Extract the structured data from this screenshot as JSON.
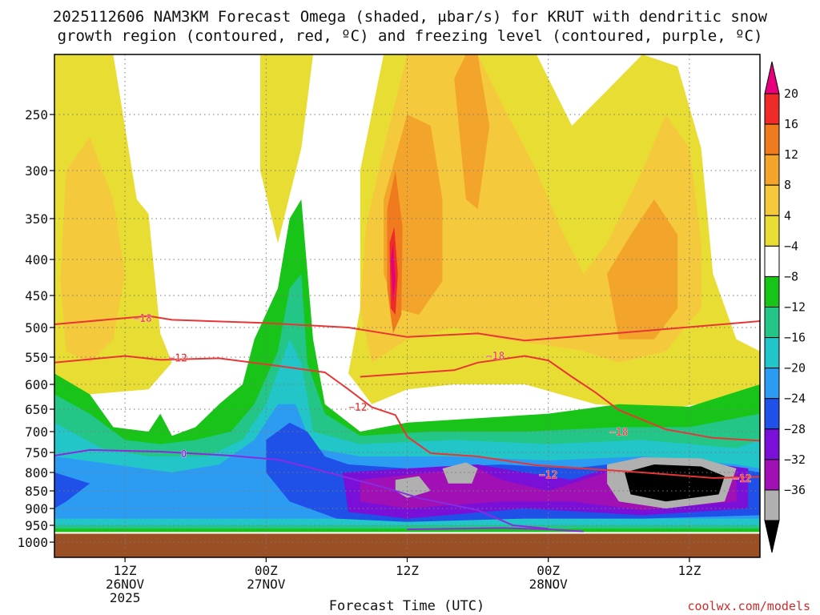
{
  "chart_data": {
    "type": "heatmap",
    "title_line1": "2025112606 NAM3KM Forecast Omega (shaded, μbar/s) for KRUT with dendritic snow",
    "title_line2": "growth region (contoured, red, ºC) and freezing level (contoured, purple, ºC)",
    "xlabel": "Forecast Time (UTC)",
    "credit": "coolwx.com/models",
    "y_axis": {
      "variable": "pressure (mb)",
      "ticks": [
        250,
        300,
        350,
        400,
        450,
        500,
        550,
        600,
        650,
        700,
        750,
        800,
        850,
        900,
        950,
        1000
      ],
      "range": [
        200,
        1000
      ]
    },
    "x_axis": {
      "variable": "forecast hour",
      "range": [
        0,
        60
      ],
      "ticks": [
        {
          "hour": 6,
          "line1": "12Z",
          "line2": "26NOV",
          "line3": "2025"
        },
        {
          "hour": 18,
          "line1": "00Z",
          "line2": "27NOV",
          "line3": ""
        },
        {
          "hour": 30,
          "line1": "12Z",
          "line2": "",
          "line3": ""
        },
        {
          "hour": 42,
          "line1": "00Z",
          "line2": "28NOV",
          "line3": ""
        },
        {
          "hour": 54,
          "line1": "12Z",
          "line2": "",
          "line3": ""
        }
      ]
    },
    "colorbar": {
      "labels": [
        "20",
        "16",
        "12",
        "8",
        "4",
        "−4",
        "−8",
        "−12",
        "−16",
        "−20",
        "−24",
        "−28",
        "−32",
        "−36"
      ],
      "colors": [
        "#e6007e",
        "#ee2a2a",
        "#f07a1e",
        "#f3a42a",
        "#f5c93c",
        "#e8dd32",
        "#ffffff",
        "#18c418",
        "#23c687",
        "#22c5c8",
        "#2b9cf2",
        "#1f50e8",
        "#7a10d8",
        "#a010b4",
        "#b0b0b0",
        "#000000"
      ]
    },
    "fields": {
      "rising_motion_layer": {
        "base_mb": 960,
        "top_mb_range": [
          600,
          350
        ],
        "omega_min": -36
      },
      "sinking_motion_aloft": {
        "layer_mb": [
          220,
          520
        ],
        "omega_max": 20,
        "peak_hour": 27
      }
    },
    "contours": [
      {
        "label": "−18",
        "color": "#e83535",
        "points": [
          [
            0,
            495
          ],
          [
            8,
            482
          ],
          [
            10,
            488
          ],
          [
            18,
            493
          ],
          [
            25,
            500
          ],
          [
            30,
            516
          ],
          [
            36,
            510
          ],
          [
            40,
            522
          ],
          [
            45,
            514
          ],
          [
            50,
            506
          ],
          [
            60,
            490
          ]
        ]
      },
      {
        "label": "−12",
        "color": "#e83535",
        "points": [
          [
            0,
            560
          ],
          [
            6,
            548
          ],
          [
            9,
            555
          ],
          [
            14,
            552
          ],
          [
            19,
            566
          ],
          [
            23,
            578
          ],
          [
            25,
            610
          ],
          [
            27,
            646
          ],
          [
            29,
            663
          ],
          [
            30,
            712
          ],
          [
            32,
            752
          ],
          [
            36,
            760
          ],
          [
            41,
            782
          ],
          [
            45,
            790
          ],
          [
            50,
            800
          ],
          [
            56,
            815
          ],
          [
            60,
            812
          ]
        ]
      },
      {
        "label": "−12",
        "color": "#e83535",
        "points": [
          [
            26,
            586
          ],
          [
            34,
            574
          ],
          [
            36,
            560
          ],
          [
            40,
            548
          ],
          [
            42,
            556
          ],
          [
            44,
            586
          ],
          [
            46,
            616
          ],
          [
            48,
            652
          ],
          [
            52,
            695
          ],
          [
            56,
            715
          ],
          [
            60,
            722
          ]
        ]
      },
      {
        "label": "0",
        "color": "#8a2be2",
        "points": [
          [
            0,
            758
          ],
          [
            3,
            744
          ],
          [
            9,
            748
          ],
          [
            15,
            758
          ],
          [
            19,
            768
          ],
          [
            22,
            790
          ],
          [
            25,
            815
          ],
          [
            28,
            840
          ],
          [
            31,
            870
          ],
          [
            36,
            905
          ],
          [
            39,
            950
          ],
          [
            42,
            960
          ]
        ]
      },
      {
        "label": "",
        "color": "#8a2be2",
        "points": [
          [
            30,
            962
          ],
          [
            34,
            960
          ],
          [
            38,
            958
          ],
          [
            42,
            962
          ],
          [
            45,
            968
          ]
        ]
      }
    ],
    "contour_labels": [
      {
        "text": "−18",
        "hour": 7.5,
        "mb": 485,
        "color": "#e83535"
      },
      {
        "text": "−12",
        "hour": 10.5,
        "mb": 551,
        "color": "#e83535"
      },
      {
        "text": "−12",
        "hour": 25.8,
        "mb": 645,
        "color": "#e83535"
      },
      {
        "text": "−18",
        "hour": 37.5,
        "mb": 547,
        "color": "#e83535"
      },
      {
        "text": "−18",
        "hour": 48,
        "mb": 700,
        "color": "#e83535"
      },
      {
        "text": "−12",
        "hour": 42,
        "mb": 805,
        "color": "#e83535"
      },
      {
        "text": "−12",
        "hour": 58.5,
        "mb": 815,
        "color": "#e83535"
      },
      {
        "text": "0",
        "hour": 11,
        "mb": 753,
        "color": "#8a2be2"
      }
    ]
  }
}
